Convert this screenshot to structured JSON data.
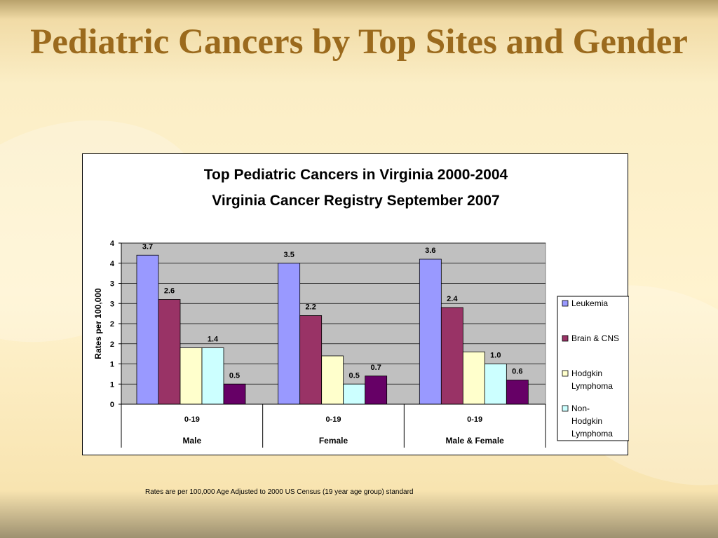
{
  "slide": {
    "title": "Pediatric Cancers by Top Sites and Gender",
    "footnote": "Rates are per 100,000 Age Adjusted to 2000 US Census (19 year age group) standard"
  },
  "chart_data": {
    "type": "bar",
    "title": "Top Pediatric Cancers in Virginia 2000-2004",
    "subtitle": "Virginia Cancer Registry September 2007",
    "ylabel": "Rates per 100,000",
    "xlabel": "",
    "ylim": [
      0,
      4
    ],
    "yticks": [
      "0",
      "1",
      "1",
      "2",
      "2",
      "3",
      "3",
      "4",
      "4"
    ],
    "categories": [
      "0-19",
      "0-19",
      "0-19"
    ],
    "groups": [
      "Male",
      "Female",
      "Male & Female"
    ],
    "grid": true,
    "legend_position": "right",
    "series": [
      {
        "name": "Leukemia",
        "color": "#9999ff",
        "values": [
          3.7,
          3.5,
          3.6
        ],
        "labels": [
          "3.7",
          "3.5",
          "3.6"
        ]
      },
      {
        "name": "Brain & CNS",
        "color": "#993366",
        "values": [
          2.6,
          2.2,
          2.4
        ],
        "labels": [
          "2.6",
          "2.2",
          "2.4"
        ]
      },
      {
        "name": "Hodgkin Lymphoma",
        "color": "#ffffcc",
        "values": [
          1.4,
          1.2,
          1.3
        ],
        "labels": [
          "",
          "",
          ""
        ]
      },
      {
        "name": "Non-Hodgkin Lymphoma",
        "color": "#ccffff",
        "values": [
          1.4,
          0.5,
          1.0
        ],
        "labels": [
          "1.4",
          "0.5",
          "1.0"
        ]
      },
      {
        "name": "",
        "color": "#660066",
        "values": [
          0.5,
          0.7,
          0.6
        ],
        "labels": [
          "0.5",
          "0.7",
          "0.6"
        ]
      }
    ]
  }
}
